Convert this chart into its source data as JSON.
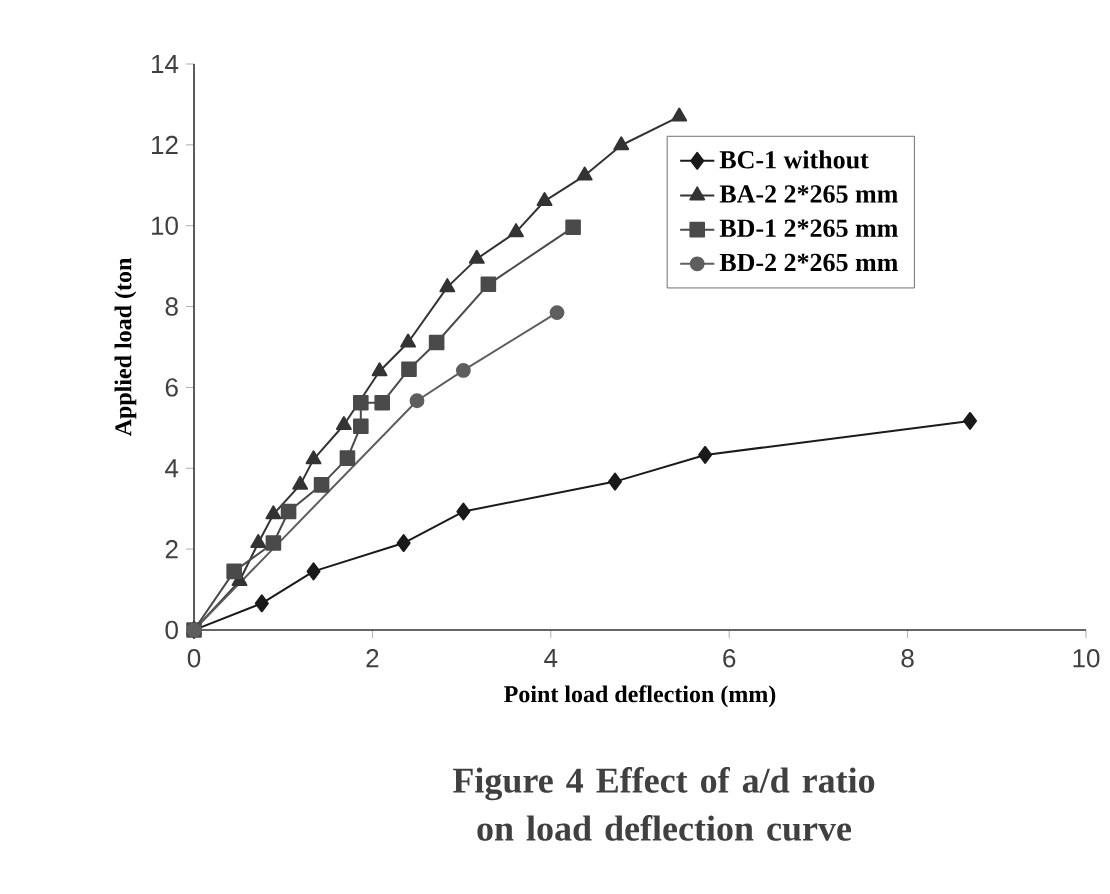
{
  "chart_data": {
    "type": "line",
    "title": "Figure 4 Effect of a/d ratio on load deflection curve",
    "xlabel": "Point load deflection (mm)",
    "ylabel": "Applied load (ton",
    "xlim": [
      0,
      10
    ],
    "ylim": [
      0,
      14
    ],
    "xticks": [
      0,
      2,
      4,
      6,
      8,
      10
    ],
    "yticks": [
      0,
      2,
      4,
      6,
      8,
      10,
      12,
      14
    ],
    "grid": false,
    "legend": "top right",
    "line_style": "solid",
    "series": [
      {
        "name": "BC-1 without",
        "color": "#1a1a1a",
        "marker": "diamond",
        "x": [
          0,
          0.76,
          1.34,
          2.35,
          3.02,
          4.72,
          5.73,
          8.7
        ],
        "values": [
          0,
          0.66,
          1.45,
          2.15,
          2.93,
          3.67,
          4.33,
          5.17
        ]
      },
      {
        "name": "BA-2 2*265 mm",
        "color": "#333333",
        "marker": "triangle",
        "x": [
          0,
          0.51,
          0.72,
          0.89,
          1.19,
          1.34,
          1.68,
          2.08,
          2.4,
          2.84,
          3.17,
          3.61,
          3.93,
          4.38,
          4.79,
          5.44
        ],
        "values": [
          0,
          1.21,
          2.15,
          2.86,
          3.59,
          4.22,
          5.07,
          6.4,
          7.11,
          8.48,
          9.18,
          9.84,
          10.61,
          11.24,
          11.99,
          12.7
        ]
      },
      {
        "name": "BD-1 2*265 mm",
        "color": "#4a4a4a",
        "marker": "square",
        "x": [
          0,
          0.45,
          0.89,
          1.06,
          1.43,
          1.72,
          1.87,
          1.87,
          2.11,
          2.41,
          2.72,
          3.3,
          4.25
        ],
        "values": [
          0,
          1.45,
          2.15,
          2.93,
          3.59,
          4.25,
          5.04,
          5.62,
          5.62,
          6.45,
          7.11,
          8.55,
          9.96
        ]
      },
      {
        "name": "BD-2 2*265 mm",
        "color": "#5e5e5e",
        "marker": "circle",
        "x": [
          0,
          2.5,
          3.02,
          4.07
        ],
        "values": [
          0,
          5.67,
          6.42,
          7.85
        ]
      }
    ]
  }
}
